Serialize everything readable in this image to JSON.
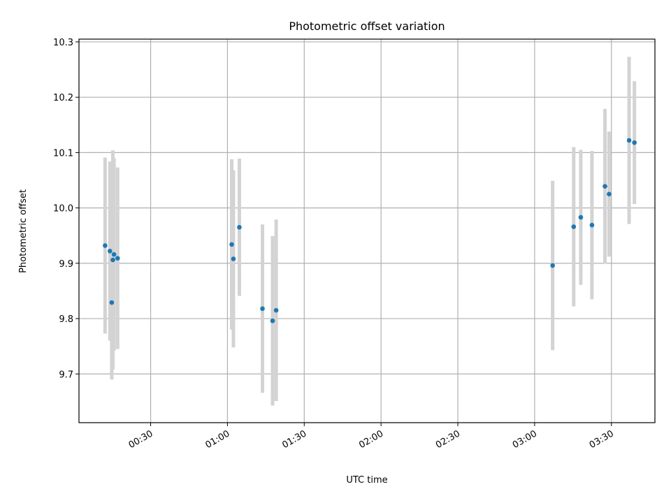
{
  "chart_data": {
    "type": "scatter",
    "title": "Photometric offset variation",
    "xlabel": "UTC time",
    "ylabel": "Photometric offset",
    "x_unit": "time (HH:MM UTC)",
    "xlim": [
      "00:02",
      "03:47"
    ],
    "ylim": [
      9.612,
      10.305
    ],
    "x_ticks": [
      "00:30",
      "01:00",
      "01:30",
      "02:00",
      "02:30",
      "03:00",
      "03:30"
    ],
    "y_ticks": [
      9.7,
      9.8,
      9.9,
      10.0,
      10.1,
      10.2,
      10.3
    ],
    "y_tick_labels": [
      "9.7",
      "9.8",
      "9.9",
      "10.0",
      "10.1",
      "10.2",
      "10.3"
    ],
    "grid": true,
    "series": [
      {
        "marker_color": "#1f77b4",
        "errorbar_color": "#d3d3d3",
        "points": [
          {
            "x": "00:12:12",
            "y": 9.932,
            "err": 0.159
          },
          {
            "x": "00:14:05",
            "y": 9.922,
            "err": 0.162
          },
          {
            "x": "00:14:48",
            "y": 9.829,
            "err": 0.139
          },
          {
            "x": "00:15:14",
            "y": 9.906,
            "err": 0.198
          },
          {
            "x": "00:15:41",
            "y": 9.916,
            "err": 0.174
          },
          {
            "x": "00:17:06",
            "y": 9.909,
            "err": 0.164
          },
          {
            "x": "01:01:40",
            "y": 9.934,
            "err": 0.154
          },
          {
            "x": "01:02:20",
            "y": 9.908,
            "err": 0.16
          },
          {
            "x": "01:04:39",
            "y": 9.965,
            "err": 0.124
          },
          {
            "x": "01:13:41",
            "y": 9.818,
            "err": 0.152
          },
          {
            "x": "01:17:38",
            "y": 9.796,
            "err": 0.153
          },
          {
            "x": "01:19:02",
            "y": 9.815,
            "err": 0.164
          },
          {
            "x": "03:07:02",
            "y": 9.896,
            "err": 0.153
          },
          {
            "x": "03:15:16",
            "y": 9.966,
            "err": 0.144
          },
          {
            "x": "03:18:02",
            "y": 9.983,
            "err": 0.122
          },
          {
            "x": "03:22:24",
            "y": 9.969,
            "err": 0.134
          },
          {
            "x": "03:27:29",
            "y": 10.039,
            "err": 0.14
          },
          {
            "x": "03:29:05",
            "y": 10.025,
            "err": 0.113
          },
          {
            "x": "03:36:55",
            "y": 10.122,
            "err": 0.151
          },
          {
            "x": "03:38:59",
            "y": 10.118,
            "err": 0.111
          }
        ]
      }
    ]
  }
}
